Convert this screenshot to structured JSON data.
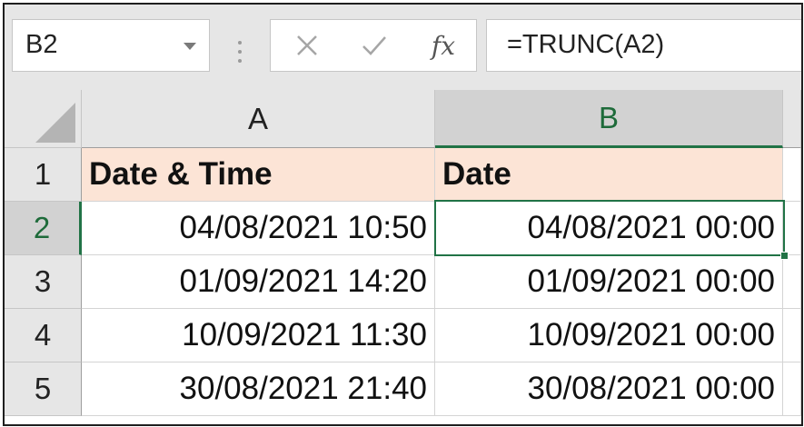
{
  "formula_bar": {
    "name_box": "B2",
    "cancel_icon": "close-icon",
    "enter_icon": "check-icon",
    "fx_label": "fx",
    "formula": "=TRUNC(A2)"
  },
  "columns": [
    "A",
    "B"
  ],
  "selected_column": "B",
  "rows": [
    "1",
    "2",
    "3",
    "4",
    "5"
  ],
  "selected_row": "2",
  "active_cell": "B2",
  "cells": [
    [
      "Date & Time",
      "Date"
    ],
    [
      "04/08/2021 10:50",
      "04/08/2021 00:00"
    ],
    [
      "01/09/2021 14:20",
      "01/09/2021 00:00"
    ],
    [
      "10/09/2021 11:30",
      "10/09/2021 00:00"
    ],
    [
      "30/08/2021 21:40",
      "30/08/2021 00:00"
    ]
  ],
  "colors": {
    "header_fill": "#fce4d6",
    "selection_green": "#217346"
  }
}
